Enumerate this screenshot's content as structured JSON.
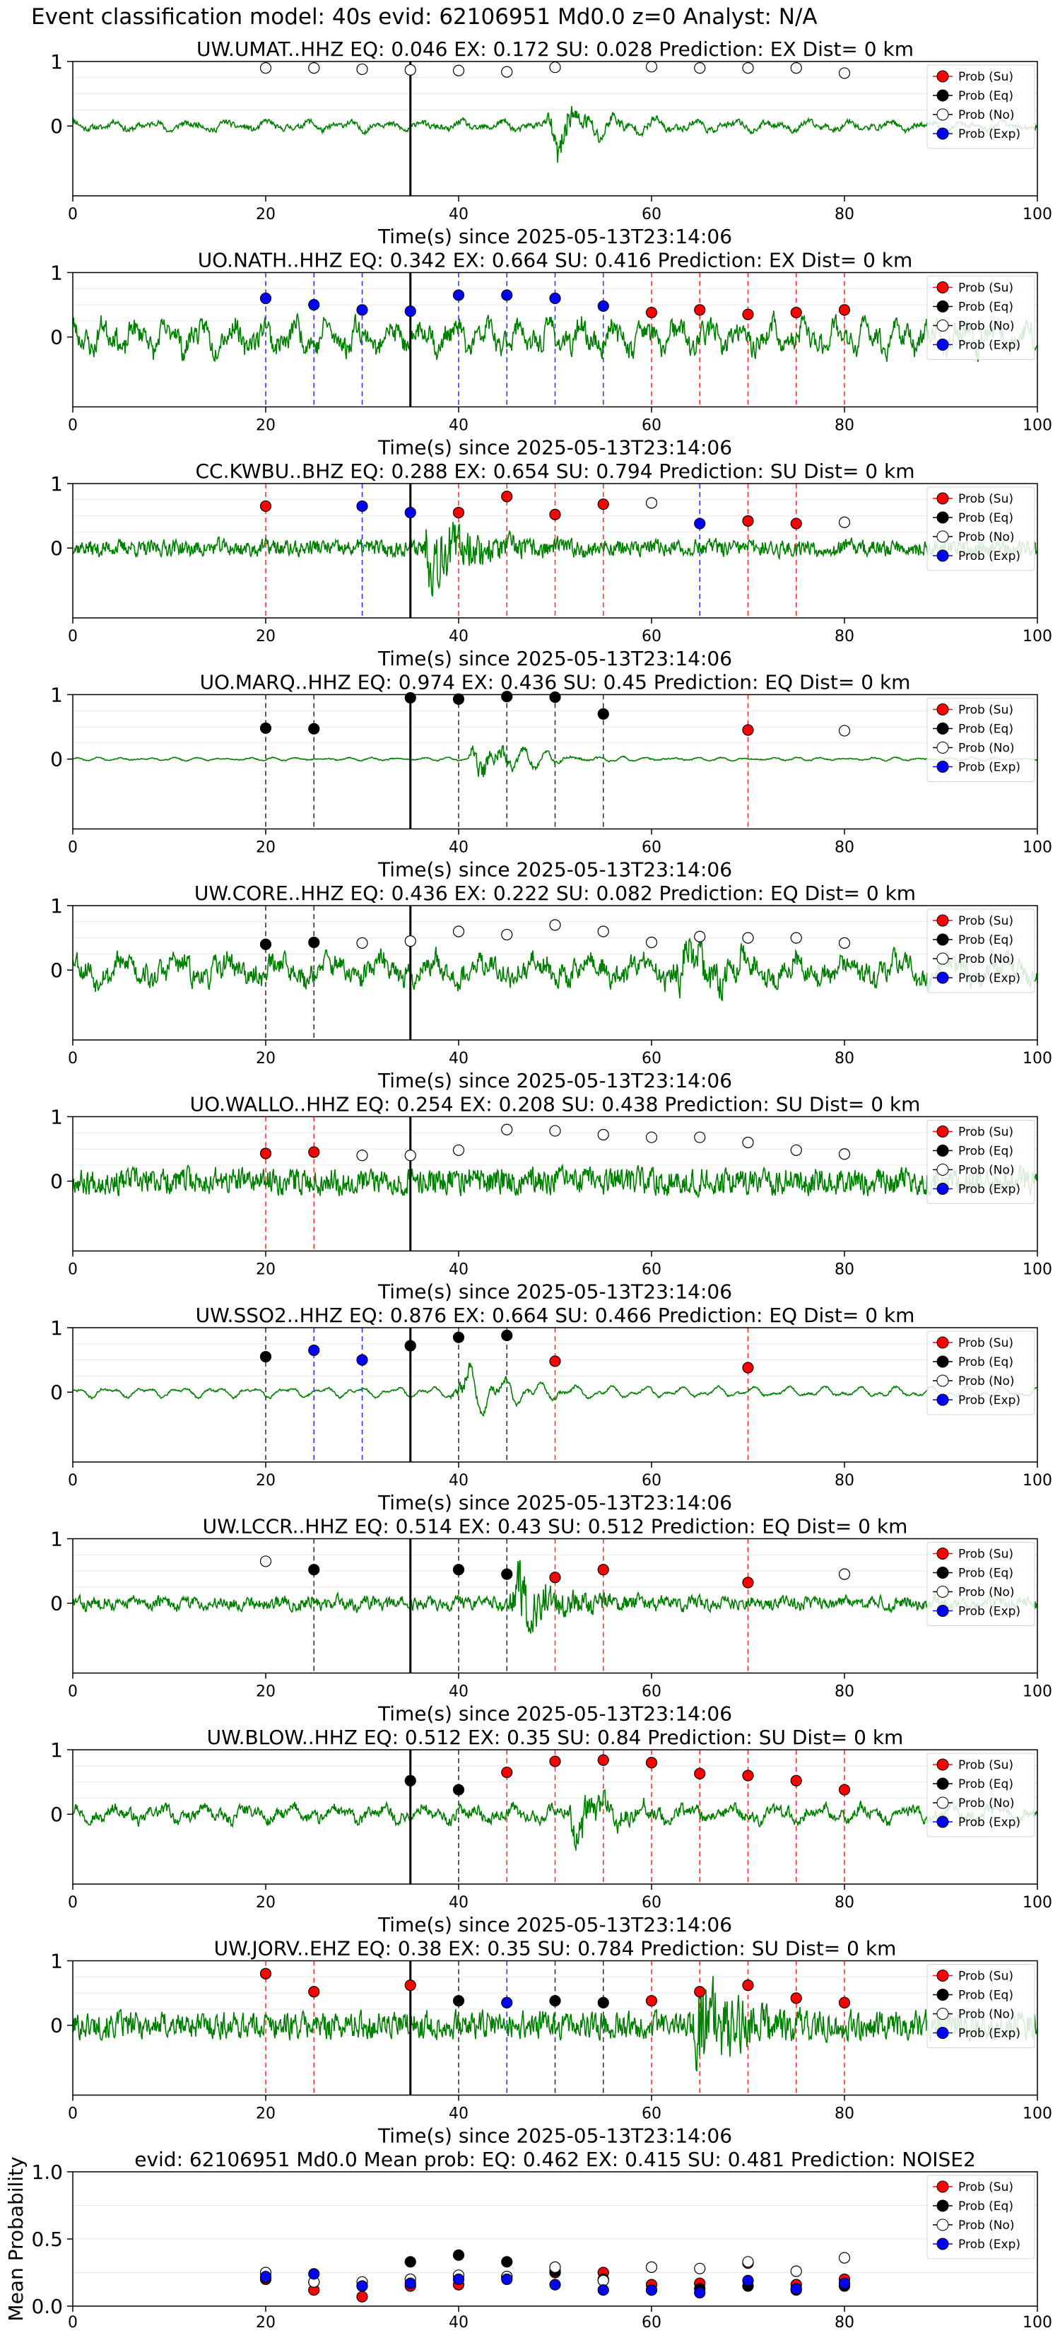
{
  "figure_title": "Event classification model: 40s evid: 62106951 Md0.0 z=0 Analyst: N/A",
  "legend_labels": [
    "Prob (Su)",
    "Prob (Eq)",
    "Prob (No)",
    "Prob (Exp)"
  ],
  "colors": {
    "su": "#ff0000",
    "eq": "#000000",
    "no": "#ffffff",
    "exp": "#0000ff",
    "waveform": "#008000"
  },
  "chart_data": [
    {
      "type": "line",
      "station": "UW.UMAT..HHZ",
      "title": "UW.UMAT..HHZ   EQ: 0.046  EX: 0.172  SU: 0.028   Prediction: EX    Dist= 0 km",
      "xlabel": "Time(s) since 2025-05-13T23:14:06",
      "xlim": [
        0,
        100
      ],
      "xticks": [
        "0",
        "20",
        "40",
        "60",
        "80",
        "100"
      ],
      "yticks": [
        "0",
        "1"
      ],
      "arrival_s": 35,
      "seed": 11,
      "amp": 0.15,
      "bursts": [
        [
          50,
          0.75
        ]
      ],
      "smooth": 0.6,
      "windows": [
        {
          "t": 20,
          "c": "no",
          "p": 0.9
        },
        {
          "t": 25,
          "c": "no",
          "p": 0.9
        },
        {
          "t": 30,
          "c": "no",
          "p": 0.88
        },
        {
          "t": 35,
          "c": "no",
          "p": 0.87
        },
        {
          "t": 40,
          "c": "no",
          "p": 0.86
        },
        {
          "t": 45,
          "c": "no",
          "p": 0.84
        },
        {
          "t": 50,
          "c": "no",
          "p": 0.91
        },
        {
          "t": 60,
          "c": "no",
          "p": 0.92
        },
        {
          "t": 65,
          "c": "no",
          "p": 0.9
        },
        {
          "t": 70,
          "c": "no",
          "p": 0.9
        },
        {
          "t": 75,
          "c": "no",
          "p": 0.9
        },
        {
          "t": 80,
          "c": "no",
          "p": 0.82
        }
      ]
    },
    {
      "type": "line",
      "station": "UO.NATH..HHZ",
      "title": "UO.NATH..HHZ   EQ: 0.342  EX: 0.664  SU: 0.416   Prediction: EX    Dist= 0 km",
      "xlabel": "Time(s) since 2025-05-13T23:14:06",
      "xlim": [
        0,
        100
      ],
      "xticks": [
        "0",
        "20",
        "40",
        "60",
        "80",
        "100"
      ],
      "yticks": [
        "0",
        "1"
      ],
      "arrival_s": 35,
      "seed": 23,
      "amp": 0.5,
      "bursts": [],
      "smooth": 0.55,
      "windows": [
        {
          "t": 20,
          "c": "exp",
          "p": 0.6
        },
        {
          "t": 25,
          "c": "exp",
          "p": 0.5
        },
        {
          "t": 30,
          "c": "exp",
          "p": 0.42
        },
        {
          "t": 35,
          "c": "exp",
          "p": 0.4
        },
        {
          "t": 40,
          "c": "exp",
          "p": 0.65
        },
        {
          "t": 45,
          "c": "exp",
          "p": 0.65
        },
        {
          "t": 50,
          "c": "exp",
          "p": 0.6
        },
        {
          "t": 55,
          "c": "exp",
          "p": 0.48
        },
        {
          "t": 60,
          "c": "su",
          "p": 0.38
        },
        {
          "t": 65,
          "c": "su",
          "p": 0.42
        },
        {
          "t": 70,
          "c": "su",
          "p": 0.35
        },
        {
          "t": 75,
          "c": "su",
          "p": 0.38
        },
        {
          "t": 80,
          "c": "su",
          "p": 0.42
        }
      ]
    },
    {
      "type": "line",
      "station": "CC.KWBU..BHZ",
      "title": "CC.KWBU..BHZ   EQ: 0.288  EX: 0.654  SU: 0.794   Prediction: SU    Dist= 0 km",
      "xlabel": "Time(s) since 2025-05-13T23:14:06",
      "xlim": [
        0,
        100
      ],
      "xticks": [
        "0",
        "20",
        "40",
        "60",
        "80",
        "100"
      ],
      "yticks": [
        "0",
        "1"
      ],
      "arrival_s": 35,
      "seed": 37,
      "amp": 0.2,
      "bursts": [
        [
          37,
          0.8
        ]
      ],
      "smooth": 0.15,
      "windows": [
        {
          "t": 20,
          "c": "su",
          "p": 0.65
        },
        {
          "t": 30,
          "c": "exp",
          "p": 0.65
        },
        {
          "t": 35,
          "c": "exp",
          "p": 0.55
        },
        {
          "t": 40,
          "c": "su",
          "p": 0.55
        },
        {
          "t": 45,
          "c": "su",
          "p": 0.8
        },
        {
          "t": 50,
          "c": "su",
          "p": 0.52
        },
        {
          "t": 55,
          "c": "su",
          "p": 0.68
        },
        {
          "t": 60,
          "c": "no",
          "p": 0.7
        },
        {
          "t": 65,
          "c": "exp",
          "p": 0.38
        },
        {
          "t": 70,
          "c": "su",
          "p": 0.42
        },
        {
          "t": 75,
          "c": "su",
          "p": 0.38
        },
        {
          "t": 80,
          "c": "no",
          "p": 0.4
        }
      ]
    },
    {
      "type": "line",
      "station": "UO.MARQ..HHZ",
      "title": "UO.MARQ..HHZ   EQ: 0.974  EX: 0.436  SU: 0.45   Prediction: EQ    Dist= 0 km",
      "xlabel": "Time(s) since 2025-05-13T23:14:06",
      "xlim": [
        0,
        100
      ],
      "xticks": [
        "0",
        "20",
        "40",
        "60",
        "80",
        "100"
      ],
      "yticks": [
        "0",
        "1"
      ],
      "arrival_s": 35,
      "seed": 41,
      "amp": 0.04,
      "bursts": [
        [
          42,
          0.8
        ]
      ],
      "smooth": 0.7,
      "windows": [
        {
          "t": 20,
          "c": "eq",
          "p": 0.48
        },
        {
          "t": 25,
          "c": "eq",
          "p": 0.47
        },
        {
          "t": 35,
          "c": "eq",
          "p": 0.95
        },
        {
          "t": 40,
          "c": "eq",
          "p": 0.93
        },
        {
          "t": 45,
          "c": "eq",
          "p": 0.97
        },
        {
          "t": 50,
          "c": "eq",
          "p": 0.96
        },
        {
          "t": 55,
          "c": "eq",
          "p": 0.7
        },
        {
          "t": 70,
          "c": "su",
          "p": 0.45
        },
        {
          "t": 80,
          "c": "no",
          "p": 0.44
        }
      ]
    },
    {
      "type": "line",
      "station": "UW.CORE..HHZ",
      "title": "UW.CORE..HHZ   EQ: 0.436  EX: 0.222  SU: 0.082   Prediction: EQ    Dist= 0 km",
      "xlabel": "Time(s) since 2025-05-13T23:14:06",
      "xlim": [
        0,
        100
      ],
      "xticks": [
        "0",
        "20",
        "40",
        "60",
        "80",
        "100"
      ],
      "yticks": [
        "0",
        "1"
      ],
      "arrival_s": 35,
      "seed": 53,
      "amp": 0.45,
      "bursts": [
        [
          63,
          0.5
        ]
      ],
      "smooth": 0.5,
      "windows": [
        {
          "t": 20,
          "c": "eq",
          "p": 0.4
        },
        {
          "t": 25,
          "c": "eq",
          "p": 0.43
        },
        {
          "t": 30,
          "c": "no",
          "p": 0.42
        },
        {
          "t": 35,
          "c": "no",
          "p": 0.45
        },
        {
          "t": 40,
          "c": "no",
          "p": 0.6
        },
        {
          "t": 45,
          "c": "no",
          "p": 0.55
        },
        {
          "t": 50,
          "c": "no",
          "p": 0.7
        },
        {
          "t": 55,
          "c": "no",
          "p": 0.6
        },
        {
          "t": 60,
          "c": "no",
          "p": 0.43
        },
        {
          "t": 65,
          "c": "no",
          "p": 0.52
        },
        {
          "t": 70,
          "c": "no",
          "p": 0.5
        },
        {
          "t": 75,
          "c": "no",
          "p": 0.5
        },
        {
          "t": 80,
          "c": "no",
          "p": 0.42
        }
      ]
    },
    {
      "type": "line",
      "station": "UO.WALLO..HHZ",
      "title": "UO.WALLO..HHZ   EQ: 0.254  EX: 0.208  SU: 0.438   Prediction: SU    Dist= 0 km",
      "xlabel": "Time(s) since 2025-05-13T23:14:06",
      "xlim": [
        0,
        100
      ],
      "xticks": [
        "0",
        "20",
        "40",
        "60",
        "80",
        "100"
      ],
      "yticks": [
        "0",
        "1"
      ],
      "arrival_s": 35,
      "seed": 67,
      "amp": 0.3,
      "bursts": [],
      "smooth": 0.1,
      "windows": [
        {
          "t": 20,
          "c": "su",
          "p": 0.43
        },
        {
          "t": 25,
          "c": "su",
          "p": 0.45
        },
        {
          "t": 30,
          "c": "no",
          "p": 0.4
        },
        {
          "t": 35,
          "c": "no",
          "p": 0.4
        },
        {
          "t": 40,
          "c": "no",
          "p": 0.48
        },
        {
          "t": 45,
          "c": "no",
          "p": 0.8
        },
        {
          "t": 50,
          "c": "no",
          "p": 0.78
        },
        {
          "t": 55,
          "c": "no",
          "p": 0.72
        },
        {
          "t": 60,
          "c": "no",
          "p": 0.68
        },
        {
          "t": 65,
          "c": "no",
          "p": 0.68
        },
        {
          "t": 70,
          "c": "no",
          "p": 0.6
        },
        {
          "t": 75,
          "c": "no",
          "p": 0.48
        },
        {
          "t": 80,
          "c": "no",
          "p": 0.42
        }
      ]
    },
    {
      "type": "line",
      "station": "UW.SSO2..HHZ",
      "title": "UW.SSO2..HHZ   EQ: 0.876  EX: 0.664  SU: 0.466   Prediction: EQ    Dist= 0 km",
      "xlabel": "Time(s) since 2025-05-13T23:14:06",
      "xlim": [
        0,
        100
      ],
      "xticks": [
        "0",
        "20",
        "40",
        "60",
        "80",
        "100"
      ],
      "yticks": [
        "0",
        "1"
      ],
      "arrival_s": 35,
      "seed": 71,
      "amp": 0.12,
      "bursts": [
        [
          40,
          0.8
        ]
      ],
      "smooth": 0.8,
      "windows": [
        {
          "t": 20,
          "c": "eq",
          "p": 0.55
        },
        {
          "t": 25,
          "c": "exp",
          "p": 0.65
        },
        {
          "t": 30,
          "c": "exp",
          "p": 0.5
        },
        {
          "t": 35,
          "c": "eq",
          "p": 0.72
        },
        {
          "t": 40,
          "c": "eq",
          "p": 0.85
        },
        {
          "t": 45,
          "c": "eq",
          "p": 0.88
        },
        {
          "t": 50,
          "c": "su",
          "p": 0.48
        },
        {
          "t": 70,
          "c": "su",
          "p": 0.38
        }
      ]
    },
    {
      "type": "line",
      "station": "UW.LCCR..HHZ",
      "title": "UW.LCCR..HHZ   EQ: 0.514  EX: 0.43  SU: 0.512   Prediction: EQ    Dist= 0 km",
      "xlabel": "Time(s) since 2025-05-13T23:14:06",
      "xlim": [
        0,
        100
      ],
      "xticks": [
        "0",
        "20",
        "40",
        "60",
        "80",
        "100"
      ],
      "yticks": [
        "0",
        "1"
      ],
      "arrival_s": 35,
      "seed": 83,
      "amp": 0.18,
      "bursts": [
        [
          46,
          0.8
        ]
      ],
      "smooth": 0.3,
      "windows": [
        {
          "t": 20,
          "c": "no",
          "p": 0.65
        },
        {
          "t": 25,
          "c": "eq",
          "p": 0.52
        },
        {
          "t": 40,
          "c": "eq",
          "p": 0.52
        },
        {
          "t": 45,
          "c": "eq",
          "p": 0.45
        },
        {
          "t": 50,
          "c": "su",
          "p": 0.4
        },
        {
          "t": 55,
          "c": "su",
          "p": 0.52
        },
        {
          "t": 70,
          "c": "su",
          "p": 0.32
        },
        {
          "t": 80,
          "c": "no",
          "p": 0.45
        }
      ]
    },
    {
      "type": "line",
      "station": "UW.BLOW..HHZ",
      "title": "UW.BLOW..HHZ   EQ: 0.512  EX: 0.35  SU: 0.84   Prediction: SU    Dist= 0 km",
      "xlabel": "Time(s) since 2025-05-13T23:14:06",
      "xlim": [
        0,
        100
      ],
      "xticks": [
        "0",
        "20",
        "40",
        "60",
        "80",
        "100"
      ],
      "yticks": [
        "0",
        "1"
      ],
      "arrival_s": 35,
      "seed": 97,
      "amp": 0.25,
      "bursts": [
        [
          52,
          0.75
        ]
      ],
      "smooth": 0.55,
      "windows": [
        {
          "t": 35,
          "c": "eq",
          "p": 0.52
        },
        {
          "t": 40,
          "c": "eq",
          "p": 0.38
        },
        {
          "t": 45,
          "c": "su",
          "p": 0.65
        },
        {
          "t": 50,
          "c": "su",
          "p": 0.82
        },
        {
          "t": 55,
          "c": "su",
          "p": 0.84
        },
        {
          "t": 60,
          "c": "su",
          "p": 0.8
        },
        {
          "t": 65,
          "c": "su",
          "p": 0.63
        },
        {
          "t": 70,
          "c": "su",
          "p": 0.6
        },
        {
          "t": 75,
          "c": "su",
          "p": 0.52
        },
        {
          "t": 80,
          "c": "su",
          "p": 0.38
        }
      ]
    },
    {
      "type": "line",
      "station": "UW.JORV..EHZ",
      "title": "UW.JORV..EHZ   EQ: 0.38  EX: 0.35  SU: 0.784   Prediction: SU    Dist= 0 km",
      "xlabel": "Time(s) since 2025-05-13T23:14:06",
      "xlim": [
        0,
        100
      ],
      "xticks": [
        "0",
        "20",
        "40",
        "60",
        "80",
        "100"
      ],
      "yticks": [
        "0",
        "1"
      ],
      "arrival_s": 35,
      "seed": 101,
      "amp": 0.3,
      "bursts": [
        [
          65,
          0.9
        ]
      ],
      "smooth": 0.05,
      "windows": [
        {
          "t": 20,
          "c": "su",
          "p": 0.8
        },
        {
          "t": 25,
          "c": "su",
          "p": 0.52
        },
        {
          "t": 35,
          "c": "su",
          "p": 0.62
        },
        {
          "t": 40,
          "c": "eq",
          "p": 0.38
        },
        {
          "t": 45,
          "c": "exp",
          "p": 0.35
        },
        {
          "t": 50,
          "c": "eq",
          "p": 0.38
        },
        {
          "t": 55,
          "c": "eq",
          "p": 0.35
        },
        {
          "t": 60,
          "c": "su",
          "p": 0.38
        },
        {
          "t": 65,
          "c": "su",
          "p": 0.52
        },
        {
          "t": 70,
          "c": "su",
          "p": 0.62
        },
        {
          "t": 75,
          "c": "su",
          "p": 0.42
        },
        {
          "t": 80,
          "c": "su",
          "p": 0.35
        }
      ]
    },
    {
      "type": "scatter",
      "title": "evid: 62106951  Md0.0   Mean prob:   EQ: 0.462  EX: 0.415  SU: 0.481   Prediction: NOISE2",
      "ylabel": "Mean Probability",
      "xlim": [
        0,
        100
      ],
      "ylim": [
        0,
        1
      ],
      "xticks": [
        "0",
        "20",
        "40",
        "60",
        "80",
        "100"
      ],
      "yticks": [
        "0.0",
        "0.5",
        "1.0"
      ],
      "x": [
        20,
        25,
        30,
        35,
        40,
        45,
        50,
        55,
        60,
        65,
        70,
        75,
        80
      ],
      "series": [
        {
          "key": "su",
          "values": [
            0.2,
            0.12,
            0.07,
            0.15,
            0.16,
            0.22,
            0.25,
            0.25,
            0.16,
            0.17,
            0.32,
            0.16,
            0.2
          ]
        },
        {
          "key": "eq",
          "values": [
            0.21,
            0.18,
            0.15,
            0.33,
            0.38,
            0.33,
            0.26,
            0.2,
            0.12,
            0.13,
            0.15,
            0.12,
            0.15
          ]
        },
        {
          "key": "no",
          "values": [
            0.25,
            0.18,
            0.18,
            0.2,
            0.23,
            0.22,
            0.29,
            0.19,
            0.29,
            0.28,
            0.33,
            0.26,
            0.36
          ]
        },
        {
          "key": "exp",
          "values": [
            0.22,
            0.24,
            0.15,
            0.17,
            0.2,
            0.2,
            0.16,
            0.12,
            0.12,
            0.1,
            0.19,
            0.13,
            0.17
          ]
        }
      ]
    }
  ]
}
